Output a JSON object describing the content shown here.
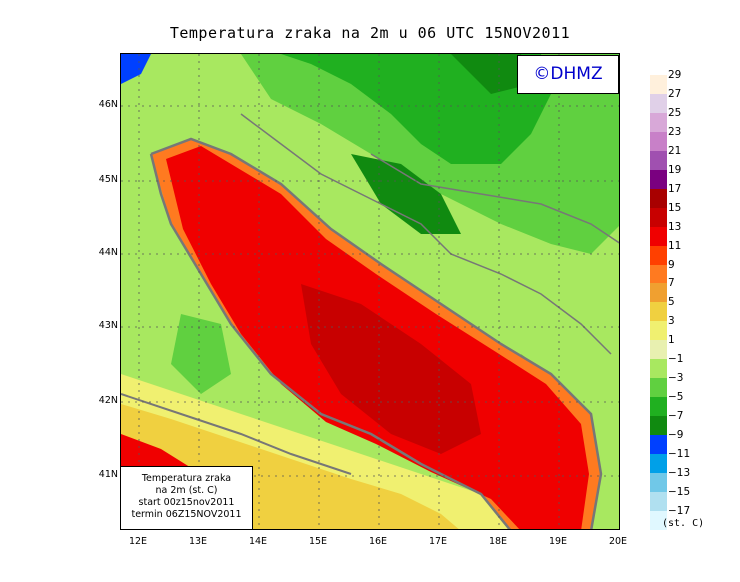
{
  "title": "Temperatura zraka na 2m u 06 UTC 15NOV2011",
  "logo": "©DHMZ",
  "info_box": {
    "line1": "Temperatura zraka",
    "line2": "na 2m (st. C)",
    "line3": "start 00z15nov2011",
    "line4": "termin 06Z15NOV2011"
  },
  "lat_ticks": [
    "46N",
    "45N",
    "44N",
    "43N",
    "42N",
    "41N"
  ],
  "lon_ticks": [
    "12E",
    "13E",
    "14E",
    "15E",
    "16E",
    "17E",
    "18E",
    "19E",
    "20E"
  ],
  "legend": {
    "units": "(st. C)",
    "labels": [
      "29",
      "27",
      "25",
      "23",
      "21",
      "19",
      "17",
      "15",
      "13",
      "11",
      "9",
      "7",
      "5",
      "3",
      "1",
      "−1",
      "−3",
      "−5",
      "−7",
      "−9",
      "−11",
      "−13",
      "−15",
      "−17"
    ],
    "colors": [
      "#fff0dc",
      "#e0d0e8",
      "#d8a8d8",
      "#c880c8",
      "#a050b0",
      "#7a0080",
      "#a80000",
      "#c80000",
      "#f00000",
      "#ff4000",
      "#ff7a20",
      "#f0a030",
      "#f0d040",
      "#f0f070",
      "#e8f0b0",
      "#a8e860",
      "#60d040",
      "#20b020",
      "#108a10",
      "#0040ff",
      "#00a0e8",
      "#70c8e8",
      "#b0e0f0",
      "#e0f8ff"
    ]
  },
  "map_colors": {
    "sea_warm": "#f00000",
    "sea_hot": "#c80000",
    "sea_mild": "#ff4000",
    "coast_mild": "#ff7a20",
    "land_cool": "#a8e860",
    "land_cold": "#60d040",
    "land_colder": "#20b020",
    "land_coldest": "#108a10",
    "neutral": "#e8f0b0",
    "yellow": "#f0f070",
    "ice": "#0040ff"
  }
}
